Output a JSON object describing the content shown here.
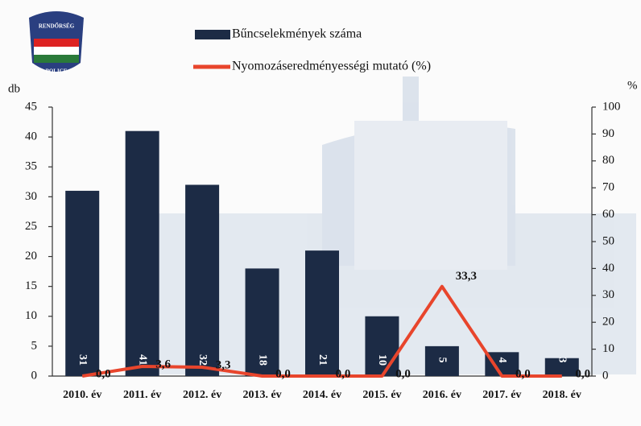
{
  "logo": {
    "top": "RENDŐRSÉG",
    "bottom": "POLICE"
  },
  "chart_data": {
    "type": "bar",
    "ylabel": "db",
    "y2label": "%",
    "categories": [
      "2010. év",
      "2011. év",
      "2012. év",
      "2013. év",
      "2014. év",
      "2015. év",
      "2016. év",
      "2017. év",
      "2018. év"
    ],
    "series": [
      {
        "name": "Bűncselekmények száma",
        "type": "bar",
        "color": "#1c2b45",
        "values": [
          31,
          41,
          32,
          18,
          21,
          10,
          5,
          4,
          3
        ]
      },
      {
        "name": "Nyomozáseredményességi mutató (%)",
        "type": "line",
        "axis": "y2",
        "color": "#e8452c",
        "values": [
          0.0,
          3.6,
          3.3,
          0.0,
          0.0,
          0.0,
          33.3,
          0.0,
          0.0
        ],
        "value_labels": [
          "0,0",
          "3,6",
          "3,3",
          "0,0",
          "0,0",
          "0,0",
          "33,3",
          "0,0",
          "0,0"
        ]
      }
    ],
    "ylim": [
      0,
      45
    ],
    "yticks": [
      0,
      5,
      10,
      15,
      20,
      25,
      30,
      35,
      40,
      45
    ],
    "y2lim": [
      0,
      100
    ],
    "y2ticks": [
      0,
      10,
      20,
      30,
      40,
      50,
      60,
      70,
      80,
      90,
      100
    ]
  }
}
